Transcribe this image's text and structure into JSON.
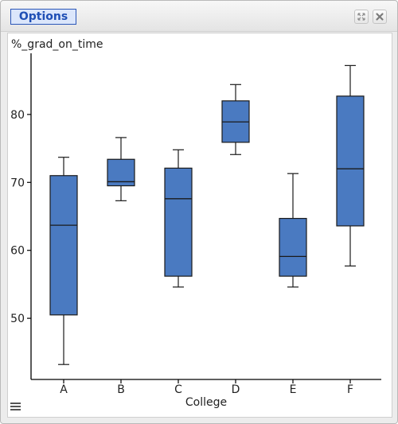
{
  "window": {
    "options_label": "Options",
    "expand_icon": "expand-icon",
    "close_icon": "close-icon",
    "menu_icon": "hamburger-menu-icon"
  },
  "colors": {
    "box_fill": "#4a7ac1",
    "box_stroke": "#1a1a1a",
    "axis": "#000000"
  },
  "chart_data": {
    "type": "boxplot",
    "title": "",
    "ylabel": "%_grad_on_time",
    "xlabel": "College",
    "ylim": [
      41,
      89
    ],
    "yticks": [
      50,
      60,
      70,
      80
    ],
    "grid": false,
    "categories": [
      "A",
      "B",
      "C",
      "D",
      "E",
      "F"
    ],
    "boxes": [
      {
        "category": "A",
        "min": 43.2,
        "q1": 50.5,
        "median": 63.7,
        "q3": 71.0,
        "max": 73.7
      },
      {
        "category": "B",
        "min": 67.3,
        "q1": 69.5,
        "median": 70.1,
        "q3": 73.4,
        "max": 76.6
      },
      {
        "category": "C",
        "min": 54.6,
        "q1": 56.2,
        "median": 67.6,
        "q3": 72.1,
        "max": 74.8
      },
      {
        "category": "D",
        "min": 74.1,
        "q1": 75.9,
        "median": 78.9,
        "q3": 82.0,
        "max": 84.4
      },
      {
        "category": "E",
        "min": 54.6,
        "q1": 56.2,
        "median": 59.1,
        "q3": 64.7,
        "max": 71.3
      },
      {
        "category": "F",
        "min": 57.7,
        "q1": 63.6,
        "median": 72.0,
        "q3": 82.7,
        "max": 87.2
      }
    ]
  }
}
